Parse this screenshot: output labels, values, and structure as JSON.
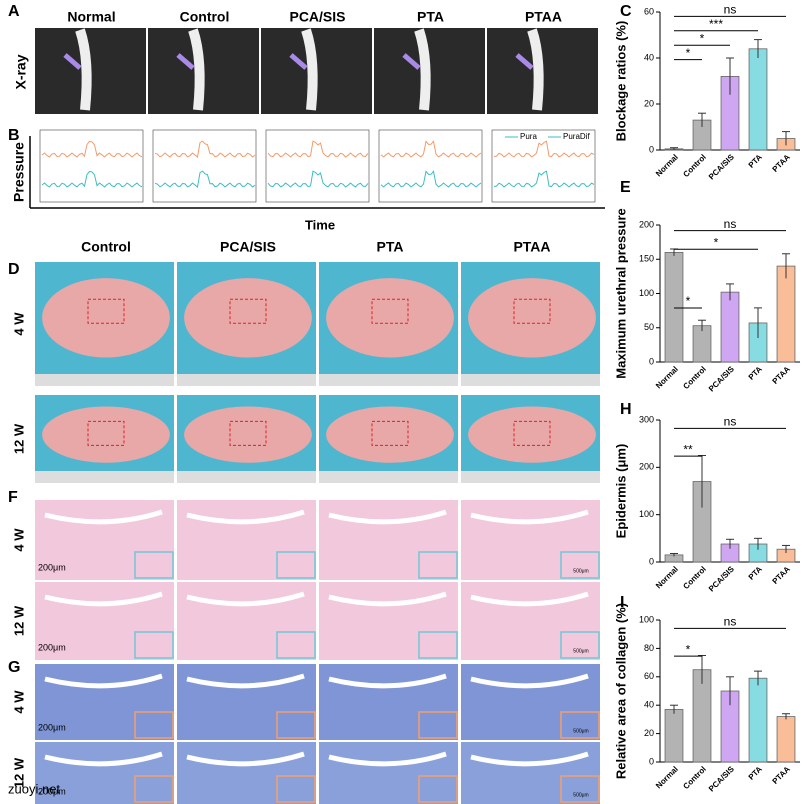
{
  "panel_labels": [
    "A",
    "B",
    "C",
    "D",
    "E",
    "F",
    "G",
    "H",
    "I"
  ],
  "xray": {
    "label": "X-ray",
    "groups": [
      "Normal",
      "Control",
      "PCA/SIS",
      "PTA",
      "PTAA"
    ]
  },
  "pressure": {
    "ylabel": "Pressure",
    "xlabel": "Time",
    "legend": [
      "Pura",
      "PuraDif"
    ]
  },
  "gross": {
    "groups": [
      "Control",
      "PCA/SIS",
      "PTA",
      "PTAA"
    ],
    "rows": [
      "4 W",
      "12 W"
    ]
  },
  "histology": {
    "rows": [
      "4 W",
      "12 W"
    ],
    "scale": "200μm",
    "inset_scale": "500μm"
  },
  "watermark": "zuoyi.net",
  "chart_data": [
    {
      "type": "bar",
      "ylabel": "Blockage ratios (%)",
      "categories": [
        "Normal",
        "Control",
        "PCA/SIS",
        "PTA",
        "PTAA"
      ],
      "values": [
        0.5,
        13,
        32,
        44,
        5
      ],
      "errors": [
        0.5,
        3,
        8,
        4,
        3
      ],
      "colors": [
        "#e0404a",
        "#b3b3b3",
        "#cfa6f2",
        "#86dce0",
        "#f9bd98"
      ],
      "ylim": [
        0,
        60
      ],
      "yticks": [
        0,
        20,
        40,
        60
      ],
      "annotations": [
        "*",
        "*",
        "***",
        "ns"
      ]
    },
    {
      "type": "bar",
      "ylabel": "Maximum urethral pressure",
      "categories": [
        "Normal",
        "Control",
        "PCA/SIS",
        "PTA",
        "PTAA"
      ],
      "values": [
        160,
        53,
        102,
        57,
        140
      ],
      "errors": [
        5,
        8,
        12,
        22,
        18
      ],
      "colors": [
        "#b3b3b3",
        "#b3b3b3",
        "#cfa6f2",
        "#86dce0",
        "#f9bd98"
      ],
      "ylim": [
        0,
        200
      ],
      "yticks": [
        0,
        50,
        100,
        150,
        200
      ],
      "annotations": [
        "*",
        "*",
        "ns"
      ]
    },
    {
      "type": "bar",
      "ylabel": "Epidermis (μm)",
      "categories": [
        "Normal",
        "Control",
        "PCA/SIS",
        "PTA",
        "PTAA"
      ],
      "values": [
        15,
        170,
        38,
        38,
        27
      ],
      "errors": [
        3,
        55,
        10,
        12,
        8
      ],
      "colors": [
        "#b3b3b3",
        "#b3b3b3",
        "#cfa6f2",
        "#86dce0",
        "#f9bd98"
      ],
      "ylim": [
        0,
        300
      ],
      "yticks": [
        0,
        100,
        200,
        300
      ],
      "annotations": [
        "**",
        "ns"
      ]
    },
    {
      "type": "bar",
      "ylabel": "Relative area of collagen (%)",
      "categories": [
        "Normal",
        "Control",
        "PCA/SIS",
        "PTA",
        "PTAA"
      ],
      "values": [
        37,
        65,
        50,
        59,
        32
      ],
      "errors": [
        3,
        10,
        10,
        5,
        2
      ],
      "colors": [
        "#b3b3b3",
        "#b3b3b3",
        "#cfa6f2",
        "#86dce0",
        "#f9bd98"
      ],
      "ylim": [
        0,
        100
      ],
      "yticks": [
        0,
        20,
        40,
        60,
        80,
        100
      ],
      "annotations": [
        "*",
        "ns"
      ]
    }
  ]
}
